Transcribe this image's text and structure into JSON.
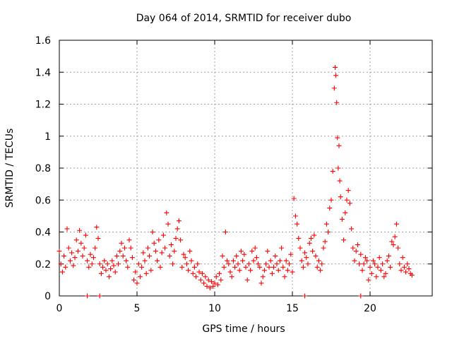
{
  "chart_data": {
    "type": "scatter",
    "title": "Day 064 of 2014, SRMTID for receiver dubo",
    "xlabel": "GPS time / hours",
    "ylabel": "SRMTID / TECUs",
    "xlim": [
      0,
      24
    ],
    "ylim": [
      0,
      1.6
    ],
    "x_ticks": [
      0,
      5,
      10,
      15,
      20
    ],
    "x_tick_labels": [
      "0",
      "5",
      "10",
      "15",
      "20"
    ],
    "y_ticks": [
      0,
      0.2,
      0.4,
      0.6,
      0.8,
      1.0,
      1.2,
      1.4,
      1.6
    ],
    "y_tick_labels": [
      "0",
      "0.2",
      "0.4",
      "0.6",
      "0.8",
      "1",
      "1.2",
      "1.4",
      "1.6"
    ],
    "grid": true,
    "marker": "plus",
    "marker_color": "#ff0000",
    "series": [
      {
        "name": "SRMTID",
        "x": [
          0.0,
          0.1,
          0.2,
          0.3,
          0.4,
          0.5,
          0.6,
          0.7,
          0.8,
          0.9,
          1.0,
          1.1,
          1.2,
          1.3,
          1.4,
          1.5,
          1.6,
          1.7,
          1.8,
          1.9,
          2.0,
          2.1,
          2.2,
          2.3,
          2.4,
          2.5,
          2.6,
          2.7,
          2.8,
          2.9,
          3.0,
          3.1,
          3.2,
          3.3,
          3.4,
          3.5,
          3.6,
          3.7,
          3.8,
          3.9,
          4.0,
          4.1,
          4.2,
          4.3,
          4.4,
          4.5,
          4.6,
          4.7,
          4.8,
          4.9,
          5.0,
          5.1,
          5.2,
          5.3,
          5.4,
          5.5,
          5.6,
          5.7,
          5.8,
          5.9,
          6.0,
          6.1,
          6.2,
          6.3,
          6.4,
          6.5,
          6.6,
          6.7,
          6.8,
          6.9,
          7.0,
          7.1,
          7.2,
          7.3,
          7.4,
          7.5,
          7.6,
          7.7,
          7.8,
          7.9,
          8.0,
          8.1,
          8.2,
          8.3,
          8.4,
          8.5,
          8.6,
          8.7,
          8.8,
          8.9,
          9.0,
          9.1,
          9.2,
          9.3,
          9.4,
          9.5,
          9.6,
          9.7,
          9.8,
          9.9,
          10.0,
          10.1,
          10.2,
          10.3,
          10.4,
          10.5,
          10.6,
          10.7,
          10.8,
          10.9,
          11.0,
          11.1,
          11.2,
          11.3,
          11.4,
          11.5,
          11.6,
          11.7,
          11.8,
          11.9,
          12.0,
          12.1,
          12.2,
          12.3,
          12.4,
          12.5,
          12.6,
          12.7,
          12.8,
          12.9,
          13.0,
          13.1,
          13.2,
          13.3,
          13.4,
          13.5,
          13.6,
          13.7,
          13.8,
          13.9,
          14.0,
          14.1,
          14.2,
          14.3,
          14.4,
          14.5,
          14.6,
          14.7,
          14.8,
          14.9,
          15.0,
          15.1,
          15.2,
          15.3,
          15.4,
          15.5,
          15.6,
          15.7,
          15.8,
          15.9,
          16.0,
          16.1,
          16.2,
          16.3,
          16.4,
          16.5,
          16.6,
          16.7,
          16.8,
          16.9,
          17.0,
          17.1,
          17.2,
          17.3,
          17.4,
          17.5,
          17.6,
          17.7,
          17.75,
          17.8,
          17.85,
          17.9,
          17.95,
          18.0,
          18.05,
          18.1,
          18.2,
          18.3,
          18.4,
          18.5,
          18.6,
          18.7,
          18.8,
          18.9,
          19.0,
          19.1,
          19.2,
          19.3,
          19.4,
          19.5,
          19.6,
          19.7,
          19.8,
          19.9,
          20.0,
          20.1,
          20.2,
          20.3,
          20.4,
          20.5,
          20.6,
          20.7,
          20.8,
          20.9,
          21.0,
          21.1,
          21.2,
          21.3,
          21.4,
          21.5,
          21.6,
          21.7,
          21.8,
          21.9,
          22.0,
          22.1,
          22.2,
          22.3,
          22.4,
          22.5,
          22.6,
          22.7
        ],
        "y": [
          0.28,
          0.2,
          0.15,
          0.25,
          0.18,
          0.42,
          0.3,
          0.22,
          0.27,
          0.19,
          0.24,
          0.35,
          0.28,
          0.41,
          0.33,
          0.25,
          0.3,
          0.38,
          0.22,
          0.18,
          0.26,
          0.2,
          0.24,
          0.3,
          0.43,
          0.36,
          0.2,
          0.14,
          0.18,
          0.22,
          0.16,
          0.2,
          0.12,
          0.17,
          0.22,
          0.19,
          0.15,
          0.25,
          0.2,
          0.28,
          0.33,
          0.25,
          0.3,
          0.22,
          0.18,
          0.35,
          0.3,
          0.24,
          0.1,
          0.15,
          0.08,
          0.2,
          0.12,
          0.18,
          0.27,
          0.22,
          0.14,
          0.3,
          0.25,
          0.16,
          0.4,
          0.33,
          0.28,
          0.22,
          0.35,
          0.18,
          0.27,
          0.38,
          0.3,
          0.52,
          0.45,
          0.25,
          0.32,
          0.2,
          0.28,
          0.36,
          0.42,
          0.47,
          0.35,
          0.18,
          0.26,
          0.24,
          0.2,
          0.16,
          0.28,
          0.22,
          0.14,
          0.18,
          0.12,
          0.2,
          0.15,
          0.1,
          0.14,
          0.08,
          0.12,
          0.06,
          0.1,
          0.05,
          0.09,
          0.06,
          0.08,
          0.12,
          0.07,
          0.14,
          0.1,
          0.25,
          0.18,
          0.4,
          0.22,
          0.2,
          0.15,
          0.12,
          0.22,
          0.18,
          0.25,
          0.2,
          0.16,
          0.28,
          0.22,
          0.26,
          0.18,
          0.1,
          0.2,
          0.16,
          0.28,
          0.22,
          0.3,
          0.24,
          0.2,
          0.18,
          0.08,
          0.12,
          0.16,
          0.2,
          0.28,
          0.18,
          0.22,
          0.14,
          0.18,
          0.25,
          0.2,
          0.16,
          0.22,
          0.3,
          0.18,
          0.12,
          0.22,
          0.16,
          0.2,
          0.26,
          0.15,
          0.61,
          0.5,
          0.45,
          0.36,
          0.3,
          0.22,
          0.18,
          0.27,
          0.24,
          0.2,
          0.33,
          0.36,
          0.28,
          0.38,
          0.25,
          0.18,
          0.22,
          0.16,
          0.2,
          0.3,
          0.34,
          0.45,
          0.4,
          0.55,
          0.6,
          0.78,
          1.3,
          1.43,
          1.38,
          1.21,
          0.99,
          0.8,
          0.94,
          0.72,
          0.62,
          0.48,
          0.35,
          0.52,
          0.6,
          0.66,
          0.58,
          0.42,
          0.3,
          0.22,
          0.28,
          0.32,
          0.2,
          0.26,
          0.16,
          0.2,
          0.24,
          0.22,
          0.1,
          0.18,
          0.14,
          0.22,
          0.2,
          0.12,
          0.18,
          0.24,
          0.16,
          0.2,
          0.12,
          0.14,
          0.22,
          0.25,
          0.18,
          0.34,
          0.32,
          0.37,
          0.45,
          0.3,
          0.2,
          0.16,
          0.24,
          0.18,
          0.15,
          0.2,
          0.17,
          0.14,
          0.13
        ]
      }
    ],
    "zero_floor_markers": {
      "x": [
        1.8,
        2.6,
        15.8,
        19.4
      ],
      "y": [
        0,
        0,
        0,
        0
      ]
    }
  }
}
